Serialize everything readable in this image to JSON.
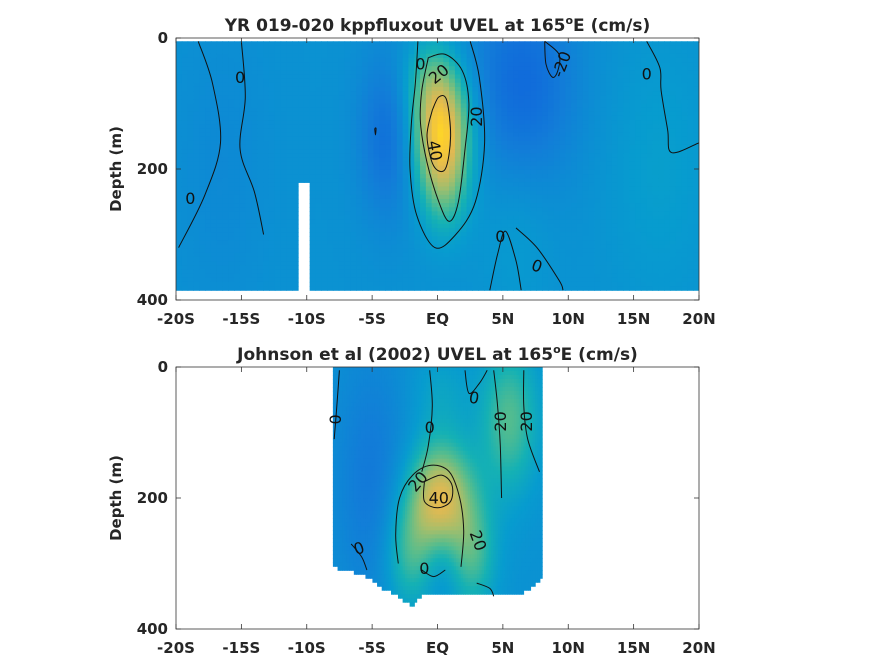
{
  "chart_data": [
    {
      "type": "heatmap",
      "title": "YR 019-020 kppfluxout UVEL at 165",
      "title_sup": "o",
      "title_tail": "E (cm/s)",
      "ylabel": "Depth (m)",
      "xlabel": "",
      "xlim": [
        -20,
        20
      ],
      "ylim": [
        400,
        0
      ],
      "y_reversed": true,
      "x_ticks": [
        -20,
        -15,
        -10,
        -5,
        0,
        5,
        10,
        15,
        20
      ],
      "x_tick_labels": [
        "-20S",
        "-15S",
        "-10S",
        "-5S",
        "EQ",
        "5N",
        "10N",
        "15N",
        "20N"
      ],
      "y_ticks": [
        0,
        200,
        400
      ],
      "y_tick_labels": [
        "0",
        "200",
        "400"
      ],
      "data_extent": {
        "x": [
          -20,
          20
        ],
        "depth": [
          5,
          385
        ]
      },
      "missing_columns": [
        {
          "x": [
            -10.5,
            -10.0
          ],
          "depth": [
            220,
            385
          ]
        }
      ],
      "color_range": [
        -40,
        60
      ],
      "grid": false,
      "features": [
        {
          "kind": "jet",
          "name": "core",
          "x": 0.3,
          "depth": 140,
          "sx": 1.6,
          "sd": 60,
          "value": 48
        },
        {
          "kind": "jet",
          "name": "core-ext",
          "x": 0.5,
          "depth": 230,
          "sx": 1.4,
          "sd": 55,
          "value": 20
        },
        {
          "kind": "jet",
          "name": "surface",
          "x": -0.5,
          "depth": 60,
          "sx": 1.6,
          "sd": 45,
          "value": 16
        },
        {
          "kind": "jet",
          "name": "south-flank",
          "x": -3.8,
          "depth": 150,
          "sx": 1.6,
          "sd": 90,
          "value": -16
        },
        {
          "kind": "jet",
          "name": "north-flank",
          "x": 6.5,
          "depth": 70,
          "sx": 3.0,
          "sd": 110,
          "value": -18
        },
        {
          "kind": "jet",
          "name": "deep-north",
          "x": 6.0,
          "depth": 300,
          "sx": 2.0,
          "sd": 90,
          "value": 5
        },
        {
          "kind": "jet",
          "name": "far-north",
          "x": 17.0,
          "depth": 200,
          "sx": 3.0,
          "sd": 150,
          "value": 6
        },
        {
          "kind": "jet",
          "name": "south-west",
          "x": -16.5,
          "depth": 200,
          "sx": 2.5,
          "sd": 150,
          "value": -4
        }
      ],
      "contours": [
        {
          "level": 0,
          "points": [
            [
              -18.3,
              5
            ],
            [
              -17.2,
              70
            ],
            [
              -16.6,
              160
            ],
            [
              -17.8,
              240
            ],
            [
              -19.8,
              320
            ]
          ]
        },
        {
          "level": 0,
          "points": [
            [
              -15.0,
              5
            ],
            [
              -14.7,
              90
            ],
            [
              -15.1,
              170
            ],
            [
              -14.0,
              235
            ],
            [
              -13.3,
              300
            ]
          ]
        },
        {
          "level": 0,
          "points": [
            [
              -1.5,
              5
            ],
            [
              -1.7,
              70
            ],
            [
              -2.0,
              130
            ],
            [
              -2.1,
              200
            ],
            [
              -1.6,
              270
            ],
            [
              -0.2,
              320
            ],
            [
              1.4,
              300
            ],
            [
              2.9,
              250
            ],
            [
              3.6,
              160
            ],
            [
              3.2,
              60
            ],
            [
              2.5,
              5
            ]
          ]
        },
        {
          "level": 0,
          "points": [
            [
              4.0,
              385
            ],
            [
              4.6,
              330
            ],
            [
              5.2,
              295
            ],
            [
              6.0,
              340
            ],
            [
              6.4,
              385
            ]
          ]
        },
        {
          "level": 0,
          "points": [
            [
              6.0,
              290
            ],
            [
              7.6,
              320
            ],
            [
              9.3,
              370
            ],
            [
              9.6,
              385
            ]
          ]
        },
        {
          "level": 0,
          "points": [
            [
              16.0,
              5
            ],
            [
              17.0,
              45
            ],
            [
              17.1,
              80
            ],
            [
              17.6,
              140
            ],
            [
              17.9,
              175
            ],
            [
              20.0,
              160
            ]
          ]
        },
        {
          "level": -20,
          "points": [
            [
              8.2,
              5
            ],
            [
              9.3,
              25
            ],
            [
              9.2,
              50
            ],
            [
              8.8,
              60
            ],
            [
              8.3,
              40
            ],
            [
              8.2,
              5
            ]
          ]
        },
        {
          "level": 20,
          "points": [
            [
              -0.7,
              30
            ],
            [
              -1.2,
              80
            ],
            [
              -1.3,
              130
            ],
            [
              -0.8,
              190
            ],
            [
              0.1,
              250
            ],
            [
              0.9,
              280
            ],
            [
              1.6,
              250
            ],
            [
              2.1,
              170
            ],
            [
              2.4,
              100
            ],
            [
              1.9,
              50
            ],
            [
              0.6,
              25
            ],
            [
              -0.7,
              30
            ]
          ]
        },
        {
          "level": 40,
          "points": [
            [
              -0.4,
              110
            ],
            [
              -0.8,
              150
            ],
            [
              -0.3,
              195
            ],
            [
              0.6,
              200
            ],
            [
              1.0,
              150
            ],
            [
              0.7,
              95
            ],
            [
              0.1,
              90
            ],
            [
              -0.4,
              110
            ]
          ]
        },
        {
          "level": -20,
          "points": [
            [
              -4.8,
              138
            ],
            [
              -4.75,
              148
            ],
            [
              -4.7,
              138
            ],
            [
              -4.8,
              138
            ]
          ]
        }
      ],
      "contour_labels": [
        {
          "text": "0",
          "x": -15.1,
          "depth": 60,
          "rotate": 0
        },
        {
          "text": "0",
          "x": -1.3,
          "depth": 40,
          "rotate": 0
        },
        {
          "text": "20",
          "x": 0.1,
          "depth": 55,
          "rotate": -40
        },
        {
          "text": "20",
          "x": 3.0,
          "depth": 120,
          "rotate": -90
        },
        {
          "text": "-20",
          "x": 9.5,
          "depth": 40,
          "rotate": -70
        },
        {
          "text": "0",
          "x": 16.0,
          "depth": 55,
          "rotate": 0
        },
        {
          "text": "0",
          "x": -18.9,
          "depth": 245,
          "rotate": 0
        },
        {
          "text": "40",
          "x": -0.2,
          "depth": 172,
          "rotate": 80
        },
        {
          "text": "0",
          "x": 4.8,
          "depth": 303,
          "rotate": 0
        },
        {
          "text": "0",
          "x": 7.6,
          "depth": 348,
          "rotate": 20
        }
      ]
    },
    {
      "type": "heatmap",
      "title": "Johnson et al (2002) UVEL at 165",
      "title_sup": "o",
      "title_tail": "E (cm/s)",
      "ylabel": "Depth (m)",
      "xlabel": "",
      "xlim": [
        -20,
        20
      ],
      "ylim": [
        400,
        0
      ],
      "y_reversed": true,
      "x_ticks": [
        -20,
        -15,
        -10,
        -5,
        0,
        5,
        10,
        15,
        20
      ],
      "x_tick_labels": [
        "-20S",
        "-15S",
        "-10S",
        "-5S",
        "EQ",
        "5N",
        "10N",
        "15N",
        "20N"
      ],
      "y_ticks": [
        0,
        200,
        400
      ],
      "y_tick_labels": [
        "0",
        "200",
        "400"
      ],
      "data_extent": {
        "x": [
          -8,
          8
        ],
        "depth": [
          0,
          365
        ]
      },
      "bottom_profile": [
        [
          -8,
          305
        ],
        [
          -6,
          315
        ],
        [
          -5,
          325
        ],
        [
          -4.5,
          335
        ],
        [
          -3,
          350
        ],
        [
          -2,
          365
        ],
        [
          -1,
          345
        ],
        [
          0,
          350
        ],
        [
          1.5,
          345
        ],
        [
          4,
          345
        ],
        [
          6.5,
          345
        ],
        [
          7.4,
          335
        ],
        [
          8,
          320
        ]
      ],
      "color_range": [
        -40,
        60
      ],
      "grid": false,
      "features": [
        {
          "kind": "jet",
          "name": "core",
          "x": 0.2,
          "depth": 200,
          "sx": 1.8,
          "sd": 60,
          "value": 44
        },
        {
          "kind": "jet",
          "name": "north-surface",
          "x": 5.5,
          "depth": 80,
          "sx": 1.6,
          "sd": 80,
          "value": 24
        },
        {
          "kind": "jet",
          "name": "south-deep",
          "x": -2.2,
          "depth": 290,
          "sx": 1.4,
          "sd": 60,
          "value": 20
        },
        {
          "kind": "jet",
          "name": "north-deep",
          "x": 2.7,
          "depth": 290,
          "sx": 1.3,
          "sd": 60,
          "value": 20
        },
        {
          "kind": "jet",
          "name": "surface-eq",
          "x": 0.2,
          "depth": 40,
          "sx": 1.6,
          "sd": 50,
          "value": 8
        },
        {
          "kind": "jet",
          "name": "south-west",
          "x": -5.0,
          "depth": 180,
          "sx": 2.0,
          "sd": 140,
          "value": -12
        },
        {
          "kind": "jet",
          "name": "below-core",
          "x": 0.3,
          "depth": 300,
          "sx": 1.0,
          "sd": 40,
          "value": -6
        }
      ],
      "contours": [
        {
          "level": 0,
          "points": [
            [
              -7.5,
              5
            ],
            [
              -7.7,
              60
            ],
            [
              -7.9,
              110
            ]
          ]
        },
        {
          "level": 0,
          "points": [
            [
              -6.6,
              270
            ],
            [
              -5.8,
              290
            ],
            [
              -5.4,
              310
            ]
          ]
        },
        {
          "level": 0,
          "points": [
            [
              -0.6,
              5
            ],
            [
              -0.4,
              60
            ],
            [
              -0.7,
              120
            ],
            [
              -1.2,
              160
            ]
          ]
        },
        {
          "level": 0,
          "points": [
            [
              2.1,
              5
            ],
            [
              2.4,
              40
            ],
            [
              3.2,
              25
            ],
            [
              3.8,
              5
            ]
          ]
        },
        {
          "level": 20,
          "points": [
            [
              -3.0,
              300
            ],
            [
              -3.2,
              255
            ],
            [
              -2.9,
              200
            ],
            [
              -1.9,
              165
            ],
            [
              -0.5,
              150
            ],
            [
              0.9,
              160
            ],
            [
              1.7,
              200
            ],
            [
              2.0,
              250
            ],
            [
              1.8,
              305
            ]
          ]
        },
        {
          "level": 40,
          "points": [
            [
              -1.0,
              175
            ],
            [
              -1.0,
              205
            ],
            [
              0,
              215
            ],
            [
              1.0,
              205
            ],
            [
              1.1,
              180
            ],
            [
              0.3,
              165
            ],
            [
              -1.0,
              175
            ]
          ]
        },
        {
          "level": 20,
          "points": [
            [
              4.3,
              5
            ],
            [
              4.6,
              60
            ],
            [
              4.8,
              120
            ],
            [
              4.9,
              200
            ]
          ]
        },
        {
          "level": 20,
          "points": [
            [
              6.6,
              5
            ],
            [
              6.6,
              60
            ],
            [
              6.9,
              110
            ],
            [
              7.8,
              160
            ]
          ]
        },
        {
          "level": 0,
          "points": [
            [
              -1.2,
              310
            ],
            [
              -0.3,
              320
            ],
            [
              0.6,
              310
            ]
          ]
        },
        {
          "level": 0,
          "points": [
            [
              3.0,
              330
            ],
            [
              4.0,
              338
            ],
            [
              4.3,
              350
            ]
          ]
        }
      ],
      "contour_labels": [
        {
          "text": "0",
          "x": -7.8,
          "depth": 80,
          "rotate": -90
        },
        {
          "text": "0",
          "x": -0.6,
          "depth": 92,
          "rotate": 0
        },
        {
          "text": "0",
          "x": 2.8,
          "depth": 47,
          "rotate": 10
        },
        {
          "text": "20",
          "x": 4.8,
          "depth": 83,
          "rotate": -90
        },
        {
          "text": "20",
          "x": 6.8,
          "depth": 83,
          "rotate": -90
        },
        {
          "text": "20",
          "x": -1.5,
          "depth": 175,
          "rotate": -50
        },
        {
          "text": "40",
          "x": 0.1,
          "depth": 200,
          "rotate": 0
        },
        {
          "text": "20",
          "x": 3.1,
          "depth": 265,
          "rotate": 70
        },
        {
          "text": "0",
          "x": -6.0,
          "depth": 277,
          "rotate": -20
        },
        {
          "text": "0",
          "x": -1.0,
          "depth": 308,
          "rotate": 0
        }
      ]
    }
  ]
}
